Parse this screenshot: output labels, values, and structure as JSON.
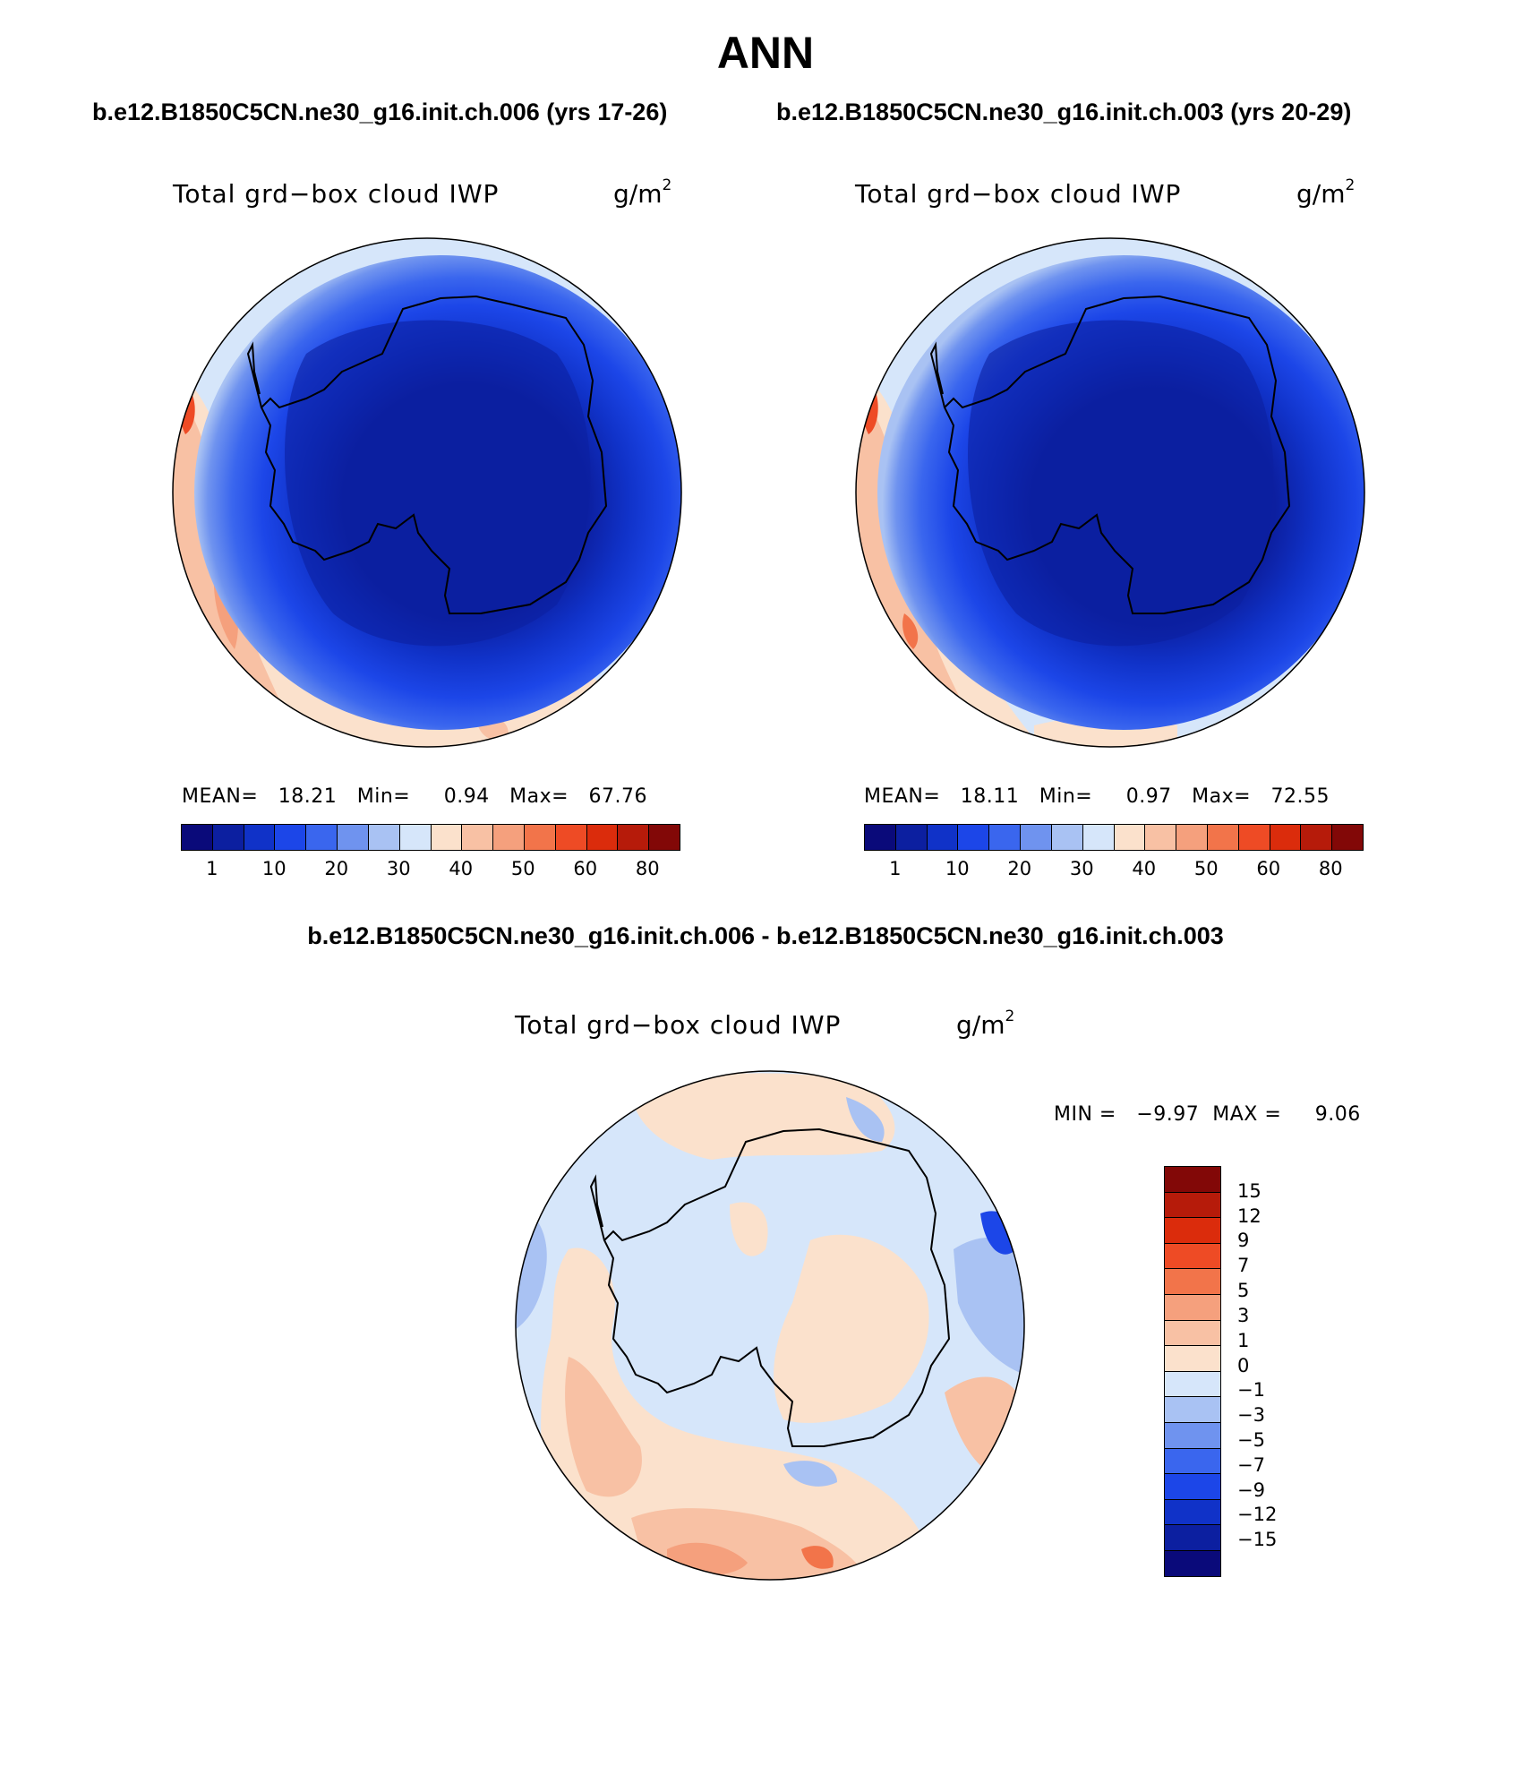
{
  "figure": {
    "title": "ANN",
    "subtitle_left": "b.e12.B1850C5CN.ne30_g16.init.ch.006 (yrs 17-26)",
    "subtitle_right": "b.e12.B1850C5CN.ne30_g16.init.ch.003 (yrs 20-29)",
    "diff_title": "b.e12.B1850C5CN.ne30_g16.init.ch.006 - b.e12.B1850C5CN.ne30_g16.init.ch.003"
  },
  "panels": [
    {
      "variable": "Total grd−box cloud IWP",
      "units_base": "g/m",
      "units_exp": "2",
      "stats": "MEAN=   18.21   Min=     0.94   Max=   67.76"
    },
    {
      "variable": "Total grd−box cloud IWP",
      "units_base": "g/m",
      "units_exp": "2",
      "stats": "MEAN=   18.11   Min=     0.97   Max=   72.55"
    },
    {
      "variable": "Total grd−box cloud IWP",
      "units_base": "g/m",
      "units_exp": "2",
      "stats": "MIN =   −9.97  MAX =     9.06"
    }
  ],
  "colorbar_main": {
    "colors": [
      "#0a0a7a",
      "#0c1fa0",
      "#1032c8",
      "#1c46e8",
      "#3a66ee",
      "#6f93ef",
      "#a9c2f3",
      "#d6e6fa",
      "#fbe1cc",
      "#f8c1a4",
      "#f5a07d",
      "#f2744a",
      "#ee4b25",
      "#db2c0c",
      "#b61b0a",
      "#820807"
    ],
    "labels": [
      {
        "text": "1",
        "slot": 1
      },
      {
        "text": "10",
        "slot": 3
      },
      {
        "text": "20",
        "slot": 5
      },
      {
        "text": "30",
        "slot": 7
      },
      {
        "text": "40",
        "slot": 9
      },
      {
        "text": "50",
        "slot": 11
      },
      {
        "text": "60",
        "slot": 13
      },
      {
        "text": "80",
        "slot": 15
      }
    ]
  },
  "colorbar_diff": {
    "colors": [
      "#820807",
      "#b61b0a",
      "#db2c0c",
      "#ee4b25",
      "#f2744a",
      "#f5a07d",
      "#f8c1a4",
      "#fbe1cc",
      "#d6e6fa",
      "#a9c2f3",
      "#6f93ef",
      "#3a66ee",
      "#1c46e8",
      "#1032c8",
      "#0c1fa0",
      "#0a0a7a"
    ],
    "labels": [
      "15",
      "12",
      "9",
      "7",
      "5",
      "3",
      "1",
      "0",
      "−1",
      "−3",
      "−5",
      "−7",
      "−9",
      "−12",
      "−15"
    ]
  }
}
